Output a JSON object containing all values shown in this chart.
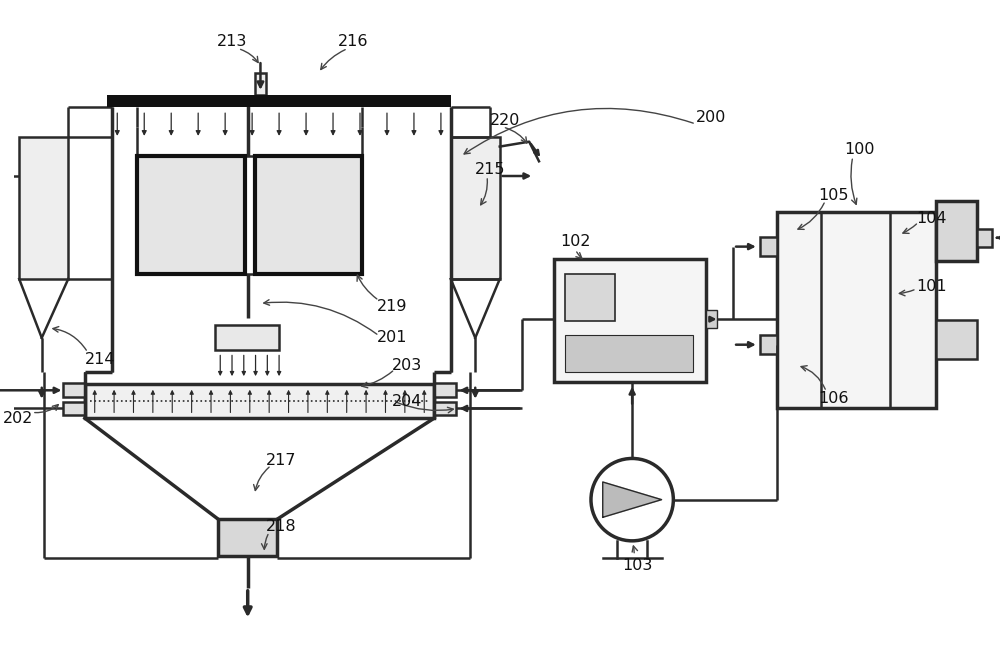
{
  "bg_color": "#ffffff",
  "lc": "#2a2a2a",
  "dark": "#111111",
  "gray": "#cccccc",
  "lgray": "#eeeeee"
}
